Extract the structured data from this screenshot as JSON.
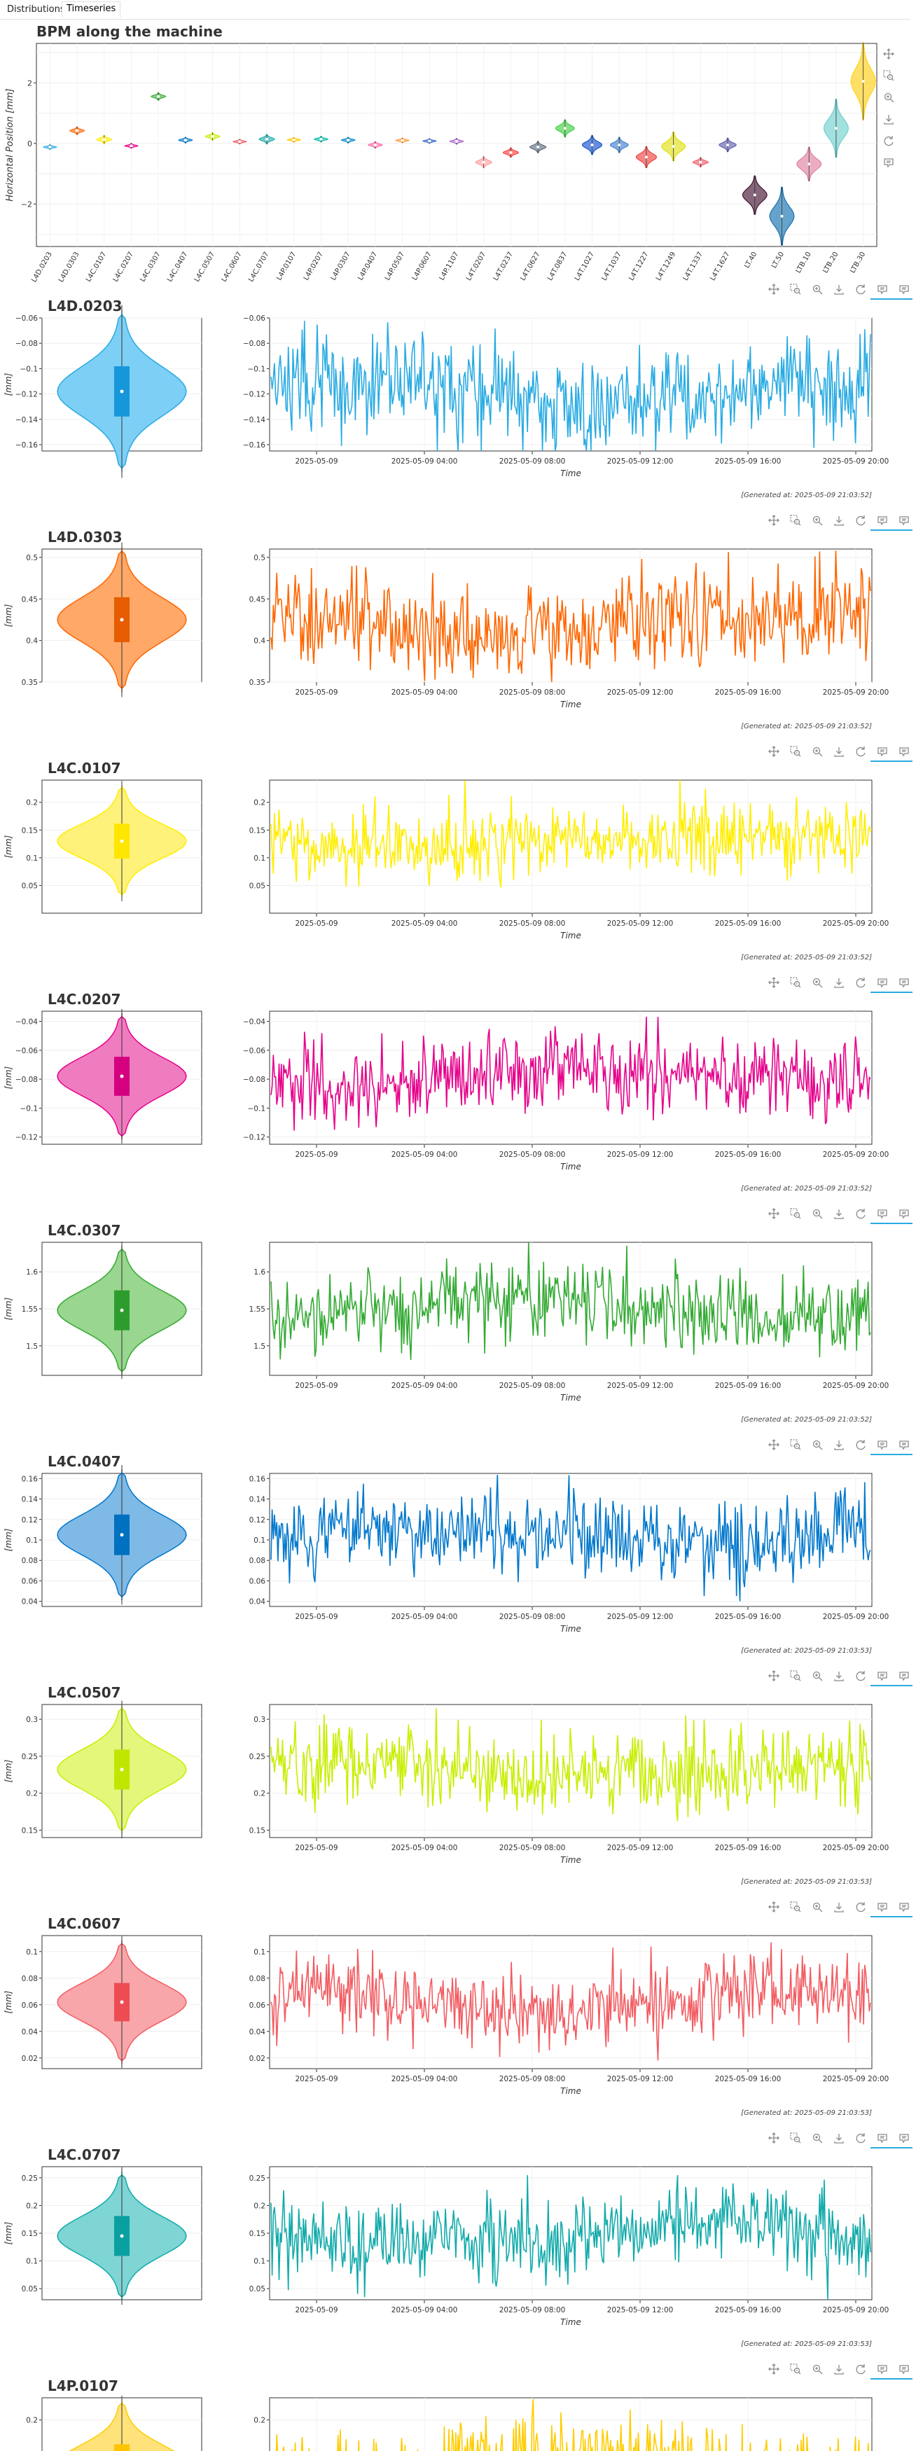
{
  "tabs": [
    {
      "label": "Distributions",
      "active": false
    },
    {
      "label": "Timeseries",
      "active": true
    }
  ],
  "overview": {
    "title": "BPM along the machine",
    "ylabel": "Horizontal Position [mm]",
    "yticks": [
      -2,
      0,
      2
    ],
    "ylim": [
      -3.4,
      3.3
    ],
    "toolbar_icons": [
      "pan-icon",
      "box-zoom-icon",
      "wheel-zoom-icon",
      "save-icon",
      "reset-icon",
      "hover-icon"
    ]
  },
  "panel_toolbar_icons": [
    "pan-icon",
    "box-zoom-icon",
    "wheel-zoom-icon",
    "save-icon",
    "reset-icon",
    "hover-icon",
    "hover-icon"
  ],
  "time_axis": {
    "label": "Time",
    "ticks": [
      "2025-05-09",
      "2025-05-09 04:00",
      "2025-05-09 08:00",
      "2025-05-09 12:00",
      "2025-05-09 16:00",
      "2025-05-09 20:00"
    ]
  },
  "violin_ylabel": "[mm]",
  "chart_data": [
    {
      "type": "violin",
      "title": "BPM along the machine",
      "ylabel": "Horizontal Position [mm]",
      "ylim": [
        -3.4,
        3.3
      ],
      "categories": [
        "L4D.0203",
        "L4D.0303",
        "L4C.0107",
        "L4C.0207",
        "L4C.0307",
        "L4C.0407",
        "L4C.0507",
        "L4C.0607",
        "L4C.0707",
        "L4P.0107",
        "L4P.0207",
        "L4P.0307",
        "L4P.0407",
        "L4P.0507",
        "L4P.0607",
        "L4P.1107",
        "L4T.0207",
        "L4T.0237",
        "L4T.0627",
        "L4T.0837",
        "L4T.1027",
        "L4T.1037",
        "L4T.1227",
        "L4T.1249",
        "L4T.1337",
        "L4T.1627",
        "LT.40",
        "LT.50",
        "LTB.10",
        "LTB.20",
        "LTB.30"
      ],
      "medians": [
        -0.12,
        0.42,
        0.13,
        -0.08,
        1.55,
        0.11,
        0.23,
        0.06,
        0.14,
        0.12,
        0.14,
        0.11,
        -0.05,
        0.1,
        0.08,
        0.07,
        -0.62,
        -0.3,
        -0.12,
        0.5,
        -0.05,
        -0.05,
        -0.45,
        -0.1,
        -0.62,
        -0.05,
        -1.7,
        -2.4,
        -0.68,
        0.5,
        2.05
      ],
      "spreads": [
        0.05,
        0.08,
        0.09,
        0.05,
        0.08,
        0.06,
        0.08,
        0.05,
        0.1,
        0.05,
        0.06,
        0.06,
        0.07,
        0.05,
        0.05,
        0.06,
        0.12,
        0.1,
        0.12,
        0.18,
        0.2,
        0.16,
        0.22,
        0.3,
        0.1,
        0.14,
        0.4,
        0.6,
        0.35,
        0.6,
        0.8
      ],
      "colors": [
        "#29abe2",
        "#ff6600",
        "#ffee00",
        "#e6008a",
        "#33aa33",
        "#0077cc",
        "#c8ee00",
        "#f25c62",
        "#11aaaa",
        "#ffcc00",
        "#00bbaa",
        "#0088cc",
        "#ff66aa",
        "#ff9933",
        "#3366cc",
        "#aa66cc",
        "#ff9999",
        "#ff3333",
        "#556677",
        "#33cc33",
        "#0044cc",
        "#3377cc",
        "#ee3333",
        "#dddd00",
        "#ee5566",
        "#5555aa",
        "#330022",
        "#0066aa",
        "#dd7799",
        "#66cccc",
        "#ffcc00"
      ]
    },
    {
      "type": "line",
      "title": "L4D.0203",
      "ylim": [
        -0.165,
        -0.06
      ],
      "yticks": [
        -0.16,
        -0.14,
        -0.12,
        -0.1,
        -0.08,
        -0.06
      ],
      "center": -0.118,
      "amp": 0.022,
      "color": "#29abe2",
      "violin_fill": "#7dcff5",
      "box_fill": "#1597d9",
      "generated": "[Generated at: 2025-05-09 21:03:52]"
    },
    {
      "type": "line",
      "title": "L4D.0303",
      "ylim": [
        0.35,
        0.51
      ],
      "yticks": [
        0.35,
        0.4,
        0.45,
        0.5
      ],
      "center": 0.425,
      "amp": 0.03,
      "color": "#ff6600",
      "violin_fill": "#ffa868",
      "box_fill": "#e65c00",
      "generated": "[Generated at: 2025-05-09 21:03:52]"
    },
    {
      "type": "line",
      "title": "L4C.0107",
      "ylim": [
        0.0,
        0.24
      ],
      "yticks": [
        0.05,
        0.1,
        0.15,
        0.2
      ],
      "center": 0.13,
      "amp": 0.035,
      "color": "#ffee00",
      "violin_fill": "#fff27a",
      "box_fill": "#ffe600",
      "generated": "[Generated at: 2025-05-09 21:03:52]"
    },
    {
      "type": "line",
      "title": "L4C.0207",
      "ylim": [
        -0.125,
        -0.033
      ],
      "yticks": [
        -0.12,
        -0.1,
        -0.08,
        -0.06,
        -0.04
      ],
      "center": -0.078,
      "amp": 0.015,
      "color": "#e6008a",
      "violin_fill": "#f07cc0",
      "box_fill": "#d4007f",
      "generated": "[Generated at: 2025-05-09 21:03:52]"
    },
    {
      "type": "line",
      "title": "L4C.0307",
      "ylim": [
        1.46,
        1.64
      ],
      "yticks": [
        1.5,
        1.55,
        1.6
      ],
      "center": 1.548,
      "amp": 0.03,
      "color": "#33aa33",
      "violin_fill": "#99d68f",
      "box_fill": "#2d9c2d",
      "generated": "[Generated at: 2025-05-09 21:03:52]"
    },
    {
      "type": "line",
      "title": "L4C.0407",
      "ylim": [
        0.035,
        0.165
      ],
      "yticks": [
        0.04,
        0.06,
        0.08,
        0.1,
        0.12,
        0.14,
        0.16
      ],
      "center": 0.105,
      "amp": 0.022,
      "color": "#0077cc",
      "violin_fill": "#7fb9e6",
      "box_fill": "#0070c0",
      "generated": "[Generated at: 2025-05-09 21:03:53]"
    },
    {
      "type": "line",
      "title": "L4C.0507",
      "ylim": [
        0.14,
        0.32
      ],
      "yticks": [
        0.15,
        0.2,
        0.25,
        0.3
      ],
      "center": 0.232,
      "amp": 0.03,
      "color": "#c8ee00",
      "violin_fill": "#e4f77a",
      "box_fill": "#c0e600",
      "generated": "[Generated at: 2025-05-09 21:03:53]"
    },
    {
      "type": "line",
      "title": "L4C.0607",
      "ylim": [
        0.012,
        0.112
      ],
      "yticks": [
        0.02,
        0.04,
        0.06,
        0.08,
        0.1
      ],
      "center": 0.062,
      "amp": 0.016,
      "color": "#f25c62",
      "violin_fill": "#f8a6a9",
      "box_fill": "#ee4c53",
      "generated": "[Generated at: 2025-05-09 21:03:53]"
    },
    {
      "type": "line",
      "title": "L4C.0707",
      "ylim": [
        0.03,
        0.27
      ],
      "yticks": [
        0.05,
        0.1,
        0.15,
        0.2,
        0.25
      ],
      "center": 0.145,
      "amp": 0.04,
      "color": "#11aaaa",
      "violin_fill": "#7fd4d4",
      "box_fill": "#0aa0a0",
      "generated": "[Generated at: 2025-05-09 21:03:53]"
    },
    {
      "type": "line",
      "title": "L4P.0107",
      "ylim": [
        0.0,
        0.24
      ],
      "yticks": [
        0.2
      ],
      "center": 0.12,
      "amp": 0.04,
      "color": "#ffcc00",
      "violin_fill": "#ffe27a",
      "box_fill": "#ffc400",
      "generated": ""
    }
  ]
}
